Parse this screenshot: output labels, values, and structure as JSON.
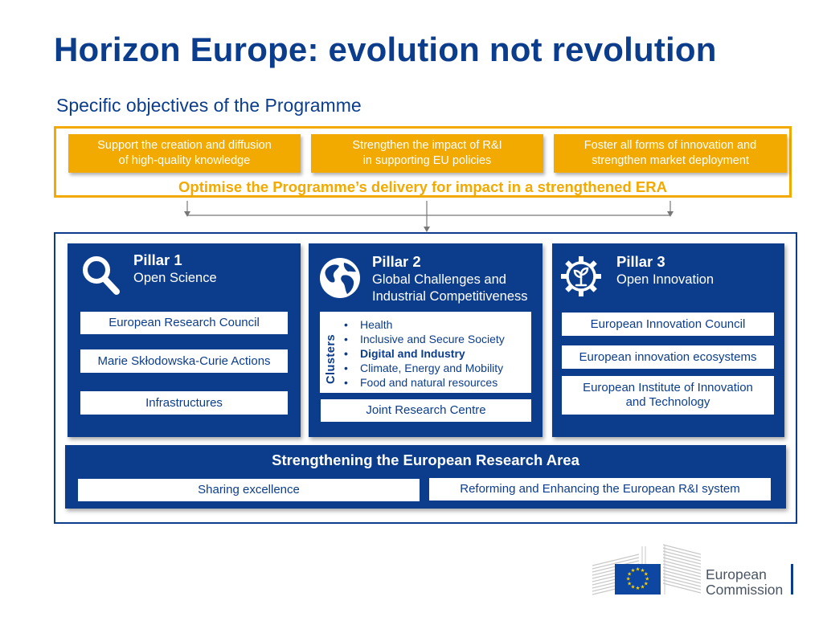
{
  "title": "Horizon Europe: evolution not revolution",
  "subtitle": "Specific objectives of the Programme",
  "objectives": [
    {
      "line1": "Support the creation and diffusion",
      "line2": "of high-quality knowledge"
    },
    {
      "line1": "Strengthen the impact of R&I",
      "line2": "in supporting EU policies"
    },
    {
      "line1": "Foster all forms of innovation and",
      "line2": "strengthen market deployment"
    }
  ],
  "objectives_footer": "Optimise the Programme’s delivery for impact in a strengthened ERA",
  "pillar1": {
    "title": "Pillar 1",
    "subtitle": "Open Science",
    "icon": "magnifier-icon",
    "items": [
      "European Research Council",
      "Marie Skłodowska-Curie Actions",
      "Infrastructures"
    ]
  },
  "pillar2": {
    "title": "Pillar 2",
    "subtitle_line1": "Global Challenges and",
    "subtitle_line2": "Industrial Competitiveness",
    "icon": "globe-icon",
    "clusters_label": "Clusters",
    "clusters": [
      "Health",
      "Inclusive and Secure Society",
      "Digital and Industry",
      "Climate, Energy and Mobility",
      "Food and natural resources"
    ],
    "bold_cluster": "Digital and Industry",
    "extra_item": "Joint Research Centre"
  },
  "pillar3": {
    "title": "Pillar 3",
    "subtitle": "Open Innovation",
    "icon": "gear-plant-icon",
    "items": [
      "European Innovation Council",
      "European innovation ecosystems"
    ],
    "eit_line1": "European Institute of Innovation",
    "eit_line2": "and Technology"
  },
  "era": {
    "title": "Strengthening the European Research Area",
    "items": [
      "Sharing excellence",
      "Reforming and Enhancing the European R&I system"
    ]
  },
  "logo": {
    "line1": "European",
    "line2": "Commission",
    "icon": "eu-flag-icon"
  },
  "colors": {
    "navy": "#0c3d8c",
    "orange": "#f2a900",
    "white": "#ffffff"
  }
}
